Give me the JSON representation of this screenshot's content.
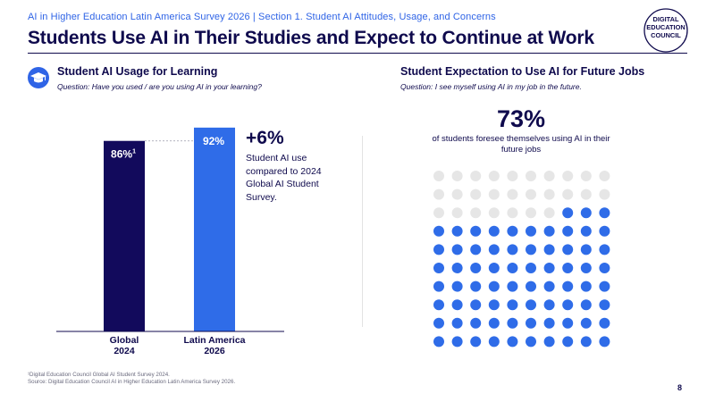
{
  "header": {
    "topline": "AI in Higher Education Latin America Survey 2026 | Section 1. Student AI Attitudes, Usage, and Concerns",
    "title": "Students Use AI in Their Studies and Expect to Continue at Work"
  },
  "logo": {
    "lines": [
      "DIGITAL",
      "EDUCATION",
      "COUNCIL"
    ]
  },
  "left_panel": {
    "icon": "graduation-cap-icon",
    "heading": "Student AI Usage for Learning",
    "question": "Question: Have you used / are you using AI in your learning?",
    "change_value": "+6%",
    "change_text": "Student AI use compared to 2024 Global AI Student Survey."
  },
  "right_panel": {
    "heading": "Student Expectation to Use AI for Future Jobs",
    "question": "Question: I see myself using AI in my job in the future.",
    "big_value": "73%",
    "big_text": "of students foresee themselves using AI in their future jobs"
  },
  "chart_data": [
    {
      "type": "bar",
      "categories": [
        "Global\n2024",
        "Latin America\n2026"
      ],
      "values": [
        86,
        92
      ],
      "labels": [
        "86%",
        "92%"
      ],
      "label_superscripts": [
        "1",
        ""
      ],
      "colors": [
        "#120a5c",
        "#2f6ce8"
      ],
      "ylim": [
        0,
        100
      ]
    },
    {
      "type": "waffle",
      "rows": 10,
      "columns": 10,
      "total": 100,
      "filled": 73,
      "filled_color": "#2f6ce8",
      "empty_color": "#e6e6e6"
    }
  ],
  "footnotes": [
    "¹Digital Education Council Global AI Student Survey 2024.",
    "Source: Digital Education Council AI in Higher Education Latin America Survey 2026."
  ],
  "page_number": "8"
}
